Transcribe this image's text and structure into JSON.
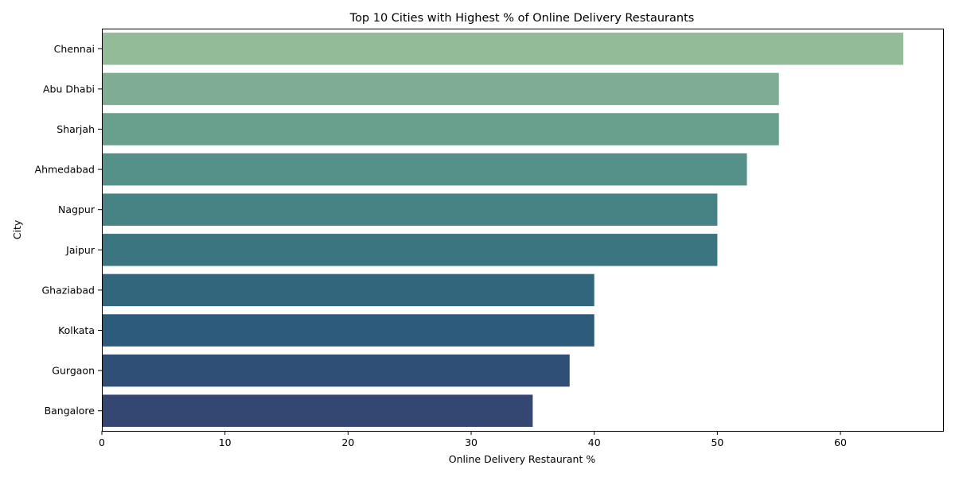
{
  "chart_data": {
    "type": "bar",
    "orientation": "horizontal",
    "title": "Top 10 Cities with Highest % of Online Delivery Restaurants",
    "xlabel": "Online Delivery Restaurant %",
    "ylabel": "City",
    "categories": [
      "Chennai",
      "Abu Dhabi",
      "Sharjah",
      "Ahmedabad",
      "Nagpur",
      "Jaipur",
      "Ghaziabad",
      "Kolkata",
      "Gurgaon",
      "Bangalore"
    ],
    "values": [
      65.1,
      55.0,
      55.0,
      52.4,
      50.0,
      50.0,
      40.0,
      40.0,
      38.0,
      35.0
    ],
    "xlim": [
      0,
      68.4
    ],
    "xticks": [
      0,
      10,
      20,
      30,
      40,
      50,
      60
    ],
    "grid": false,
    "colors": [
      "#93bb97",
      "#7fad94",
      "#68a08d",
      "#559189",
      "#478385",
      "#3a7580",
      "#31667c",
      "#2d5b7b",
      "#2f4f77",
      "#344672"
    ]
  }
}
